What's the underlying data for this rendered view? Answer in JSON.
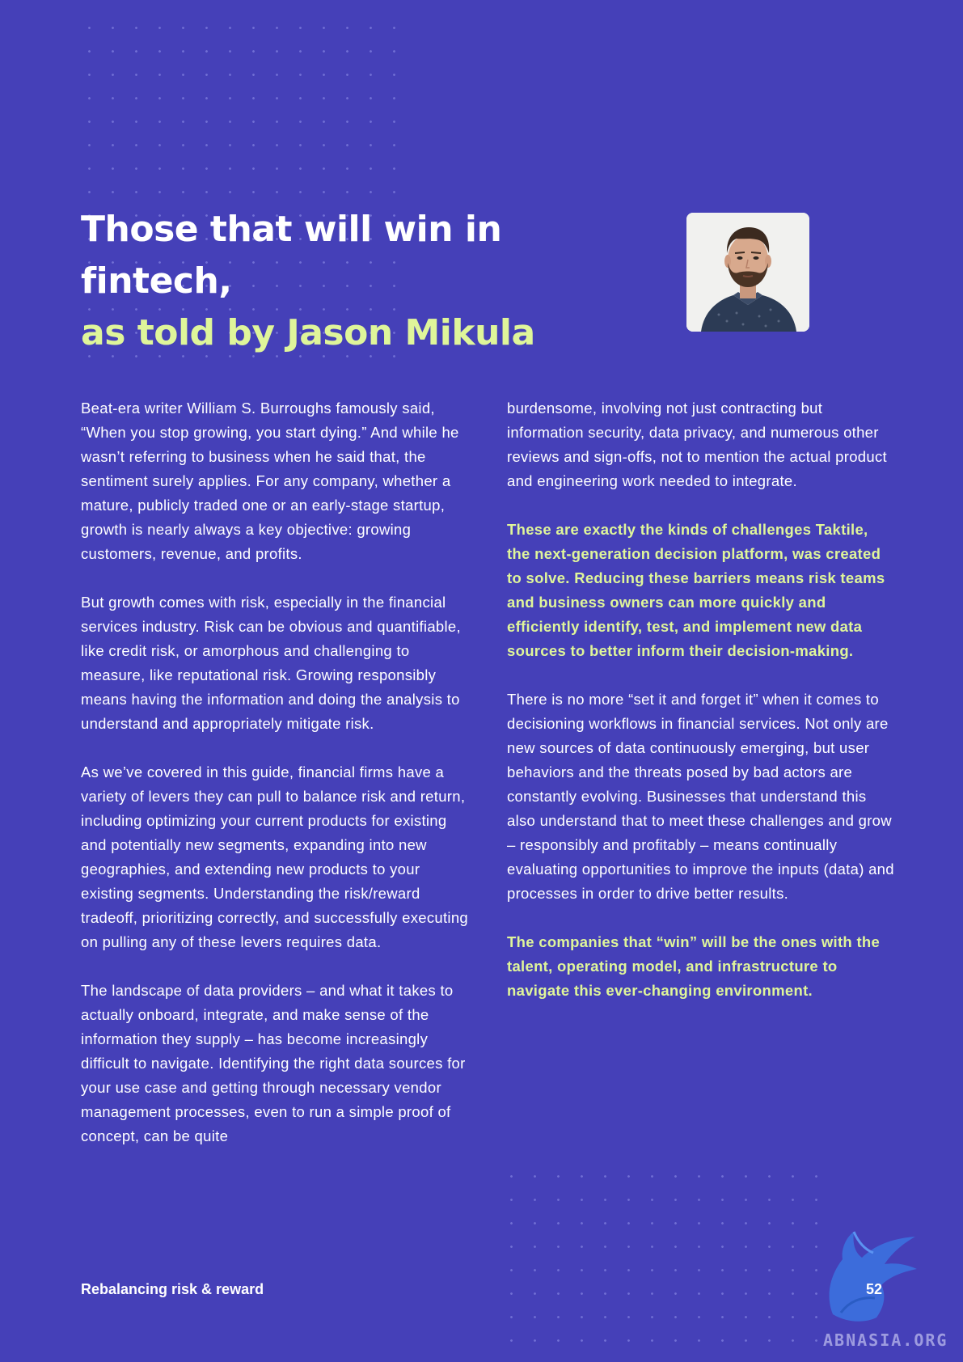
{
  "title": {
    "line1": "Those that will win in fintech,",
    "line2": "as told by Jason Mikula"
  },
  "left_column": {
    "paragraphs": [
      "Beat-era writer William S. Burroughs famously said, “When you stop growing, you start dying.” And while he wasn’t referring to business when he said that, the sentiment surely applies. For any company, whether a mature, publicly traded one or an early-stage startup, growth is nearly always a key objective: growing customers, revenue, and profits.",
      "But growth comes with risk, especially in the financial services industry. Risk can be obvious and quantifiable, like credit risk, or amorphous and challenging to measure, like reputational risk. Growing responsibly means having the information and doing the analysis to understand and appropriately mitigate risk.",
      "As we’ve covered in this guide, financial firms have a variety of levers they can pull to balance risk and return, including optimizing your current products for existing and potentially new segments, expanding into new geographies, and extending new products to your existing segments. Understanding the risk/reward tradeoff, prioritizing correctly, and successfully executing on pulling any of these levers requires data.",
      "The landscape of data providers – and what it takes to actually onboard, integrate, and make sense of the information they supply – has become increasingly difficult to navigate. Identifying the right data sources for your use case and getting through necessary vendor management processes, even to run a simple proof of concept, can be quite"
    ]
  },
  "right_column": {
    "paragraphs": [
      "burdensome, involving not just contracting but information security, data privacy, and numerous other reviews and sign-offs, not to mention the actual product and engineering work needed to integrate.",
      "There is no more “set it and forget it” when it comes to decisioning workflows in financial services. Not only are new sources of data continuously emerging, but user behaviors and the threats posed by bad actors are constantly evolving. Businesses that understand this also understand that to meet these challenges and grow – responsibly and profitably – means continually evaluating opportunities to improve the inputs (data) and processes in order to drive better results."
    ],
    "highlights": [
      "These are exactly the kinds of challenges Taktile, the next-generation decision platform, was created to solve. Reducing these barriers means risk teams and business owners can more quickly and efficiently identify, test, and implement new data sources to better inform their decision-making.",
      "The companies that “win” will be the ones with the talent, operating model, and infrastructure to navigate this ever-changing environment."
    ]
  },
  "footer": {
    "title": "Rebalancing risk & reward",
    "page_number": "52"
  },
  "watermark": {
    "text": "ABNASIA.ORG"
  },
  "colors": {
    "background": "#4540b8",
    "accent": "#dff59a",
    "text": "#ffffff"
  }
}
